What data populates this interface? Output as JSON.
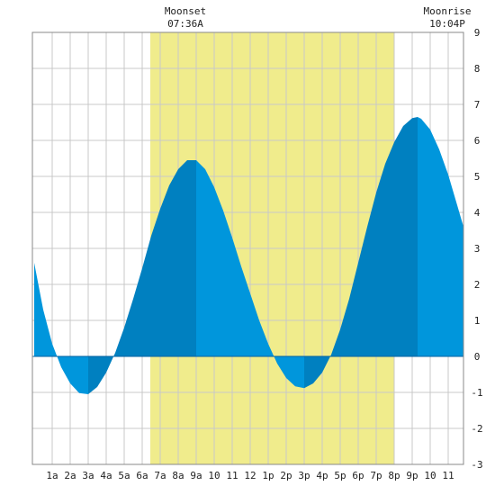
{
  "chart_data": {
    "type": "area",
    "title": "",
    "xlabel": "",
    "ylabel": "",
    "x_unit": "hour of day",
    "xlim": [
      -0.1,
      23.85
    ],
    "ylim": [
      -3,
      9
    ],
    "grid": true,
    "y_ticks": [
      -3,
      -2,
      -1,
      0,
      1,
      2,
      3,
      4,
      5,
      6,
      7,
      8,
      9
    ],
    "x_ticks": [
      {
        "hour": 1,
        "label": "1a"
      },
      {
        "hour": 2,
        "label": "2a"
      },
      {
        "hour": 3,
        "label": "3a"
      },
      {
        "hour": 4,
        "label": "4a"
      },
      {
        "hour": 5,
        "label": "5a"
      },
      {
        "hour": 6,
        "label": "6a"
      },
      {
        "hour": 7,
        "label": "7a"
      },
      {
        "hour": 8,
        "label": "8a"
      },
      {
        "hour": 9,
        "label": "9a"
      },
      {
        "hour": 10,
        "label": "10"
      },
      {
        "hour": 11,
        "label": "11"
      },
      {
        "hour": 12,
        "label": "12"
      },
      {
        "hour": 13,
        "label": "1p"
      },
      {
        "hour": 14,
        "label": "2p"
      },
      {
        "hour": 15,
        "label": "3p"
      },
      {
        "hour": 16,
        "label": "4p"
      },
      {
        "hour": 17,
        "label": "5p"
      },
      {
        "hour": 18,
        "label": "6p"
      },
      {
        "hour": 19,
        "label": "7p"
      },
      {
        "hour": 20,
        "label": "8p"
      },
      {
        "hour": 21,
        "label": "9p"
      },
      {
        "hour": 22,
        "label": "10"
      },
      {
        "hour": 23,
        "label": "11"
      }
    ],
    "series": [
      {
        "values": [
          [
            0.0,
            2.6
          ],
          [
            0.5,
            1.3
          ],
          [
            1.0,
            0.35
          ],
          [
            1.5,
            -0.3
          ],
          [
            2.0,
            -0.75
          ],
          [
            2.5,
            -1.02
          ],
          [
            3.0,
            -1.05
          ],
          [
            3.5,
            -0.85
          ],
          [
            4.0,
            -0.45
          ],
          [
            4.5,
            0.1
          ],
          [
            5.0,
            0.8
          ],
          [
            5.5,
            1.6
          ],
          [
            6.0,
            2.45
          ],
          [
            6.5,
            3.35
          ],
          [
            7.0,
            4.1
          ],
          [
            7.5,
            4.75
          ],
          [
            8.0,
            5.2
          ],
          [
            8.5,
            5.45
          ],
          [
            9.0,
            5.45
          ],
          [
            9.5,
            5.2
          ],
          [
            10.0,
            4.7
          ],
          [
            10.5,
            4.05
          ],
          [
            11.0,
            3.3
          ],
          [
            11.5,
            2.5
          ],
          [
            12.0,
            1.75
          ],
          [
            12.5,
            1.0
          ],
          [
            13.0,
            0.35
          ],
          [
            13.5,
            -0.2
          ],
          [
            14.0,
            -0.6
          ],
          [
            14.5,
            -0.83
          ],
          [
            15.0,
            -0.88
          ],
          [
            15.5,
            -0.75
          ],
          [
            16.0,
            -0.45
          ],
          [
            16.5,
            0.05
          ],
          [
            17.0,
            0.75
          ],
          [
            17.5,
            1.6
          ],
          [
            18.0,
            2.6
          ],
          [
            18.5,
            3.6
          ],
          [
            19.0,
            4.55
          ],
          [
            19.5,
            5.35
          ],
          [
            20.0,
            5.95
          ],
          [
            20.5,
            6.4
          ],
          [
            21.0,
            6.62
          ],
          [
            21.3,
            6.65
          ],
          [
            21.5,
            6.6
          ],
          [
            22.0,
            6.3
          ],
          [
            22.5,
            5.75
          ],
          [
            23.0,
            5.05
          ],
          [
            23.5,
            4.2
          ],
          [
            23.85,
            3.6
          ]
        ]
      }
    ],
    "extremes_hours": [
      3.0,
      9.0,
      15.0,
      21.3
    ],
    "moon_window": {
      "start_hour": 6.45,
      "end_hour": 20.0
    },
    "colors": {
      "rising": "#0080c0",
      "falling": "#0096dc",
      "moon_band": "#f0ec8c",
      "grid": "#c8c8c8",
      "frame": "#888888",
      "zero_line": "#0060a0"
    }
  },
  "moonset": {
    "label": "Moonset",
    "time": "07:36A"
  },
  "moonrise": {
    "label": "Moonrise",
    "time": "10:04P"
  }
}
